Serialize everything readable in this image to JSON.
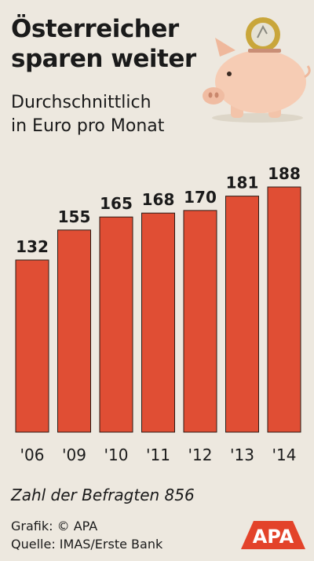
{
  "title_lines": [
    "Österreicher",
    "sparen weiter"
  ],
  "subtitle_lines": [
    "Durchschnittlich",
    "in Euro pro Monat"
  ],
  "note": "Zahl der Befragten 856",
  "credits": [
    "Grafik: © APA",
    "Quelle: IMAS/Erste Bank"
  ],
  "logo": {
    "text": "APA",
    "color": "#e3432a"
  },
  "colors": {
    "bar": "#e04e34",
    "background": "#ede8df"
  },
  "chart_data": {
    "type": "bar",
    "categories": [
      "'06",
      "'09",
      "'10",
      "'11",
      "'12",
      "'13",
      "'14"
    ],
    "values": [
      132,
      155,
      165,
      168,
      170,
      181,
      188
    ],
    "title": "Österreicher sparen weiter",
    "subtitle": "Durchschnittlich in Euro pro Monat",
    "ylim": [
      0,
      188
    ],
    "grid": false,
    "data_labels": true
  }
}
